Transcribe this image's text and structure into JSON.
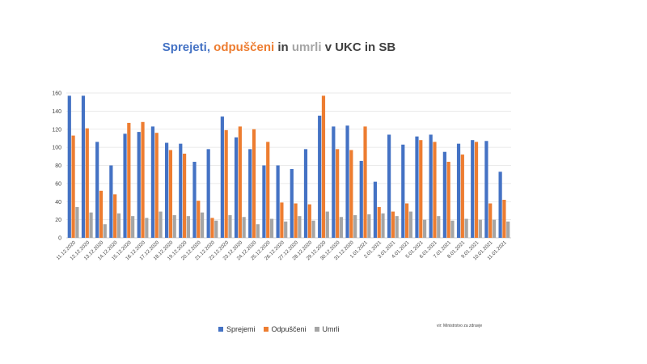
{
  "chart_data": {
    "type": "bar",
    "title_parts": [
      {
        "text": "Sprejeti",
        "color": "#4472c4"
      },
      {
        "text": ", ",
        "color": "#4472c4"
      },
      {
        "text": "odpuščeni",
        "color": "#ed7d31"
      },
      {
        "text": " in ",
        "color": "#404040"
      },
      {
        "text": "umrli",
        "color": "#a5a5a5"
      },
      {
        "text": " v UKC in SB",
        "color": "#404040"
      }
    ],
    "categories": [
      "11.12.2020",
      "12.12.2020",
      "13.12.2020",
      "14.12.2020",
      "15.12.2020",
      "16.12.2020",
      "17.12.2020",
      "18.12.2020",
      "19.12.2020",
      "20.12.2020",
      "21.12.2020",
      "22.12.2020",
      "23.12.2020",
      "24.12.2020",
      "25.12.2020",
      "26.12.2020",
      "27.12.2020",
      "28.12.2020",
      "29.12.2020",
      "30.12.2020",
      "31.12.2020",
      "1.01.2021",
      "2.01.2021",
      "3.01.2021",
      "4.01.2021",
      "5.01.2021",
      "6.01.2021",
      "7.01.2021",
      "8.01.2021",
      "9.01.2021",
      "10.01.2021",
      "11.01.2021"
    ],
    "series": [
      {
        "name": "Sprejemi",
        "color": "#4472c4",
        "values": [
          157,
          157,
          106,
          80,
          115,
          117,
          123,
          105,
          104,
          84,
          98,
          134,
          111,
          98,
          80,
          80,
          76,
          98,
          135,
          123,
          124,
          85,
          62,
          114,
          103,
          112,
          114,
          95,
          104,
          108,
          107,
          73
        ]
      },
      {
        "name": "Odpuščeni",
        "color": "#ed7d31",
        "values": [
          113,
          121,
          52,
          48,
          127,
          128,
          116,
          97,
          93,
          41,
          22,
          119,
          123,
          120,
          106,
          39,
          38,
          37,
          157,
          98,
          97,
          123,
          34,
          29,
          38,
          108,
          106,
          84,
          92,
          106,
          38,
          42
        ]
      },
      {
        "name": "Umrli",
        "color": "#a5a5a5",
        "values": [
          34,
          28,
          15,
          27,
          24,
          22,
          29,
          25,
          24,
          28,
          19,
          25,
          23,
          15,
          21,
          18,
          24,
          19,
          29,
          23,
          25,
          26,
          27,
          24,
          29,
          20,
          24,
          19,
          21,
          20,
          20,
          18
        ]
      }
    ],
    "y_ticks": [
      "0",
      "20",
      "40",
      "60",
      "80",
      "100",
      "120",
      "140",
      "160"
    ],
    "ylim": [
      0,
      160
    ],
    "grid": true,
    "legend_position": "bottom",
    "source_note": "vir: Ministrstvo za zdravje"
  }
}
